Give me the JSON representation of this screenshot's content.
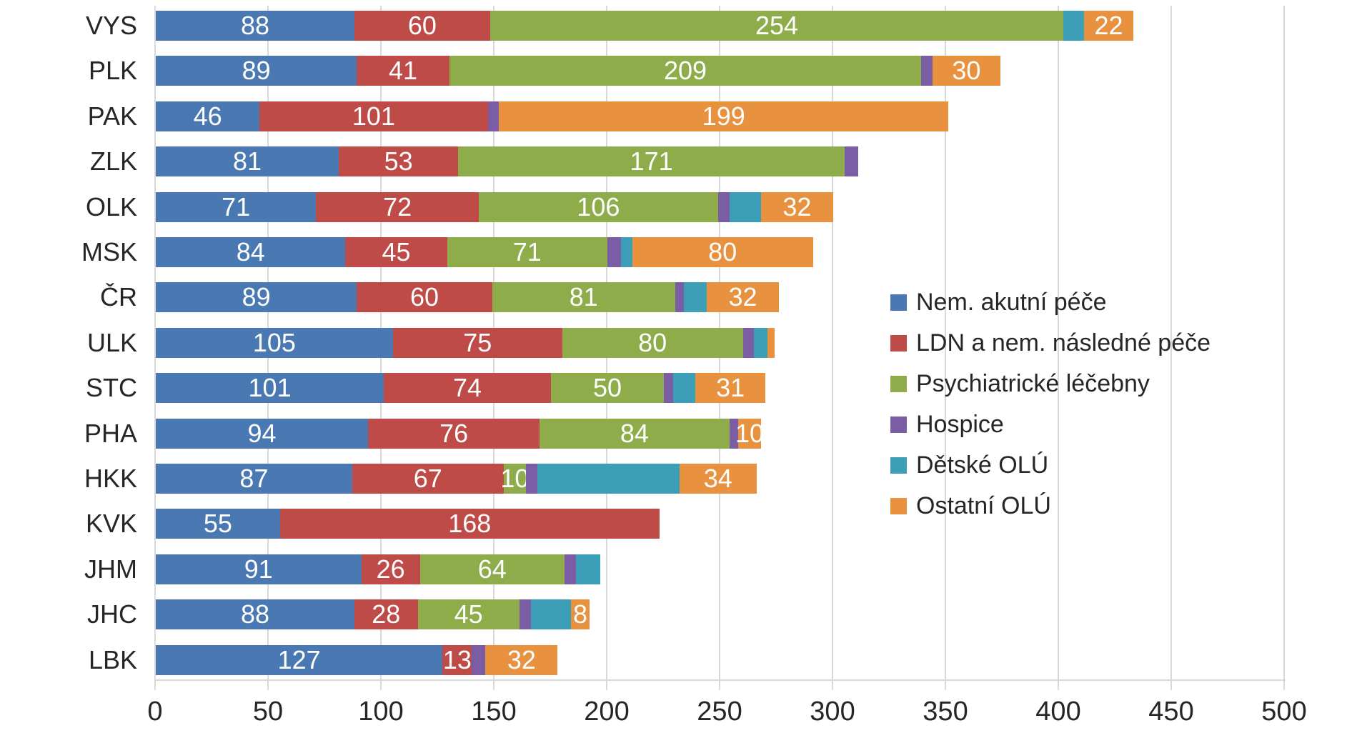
{
  "chart_data": {
    "type": "bar",
    "orientation": "horizontal",
    "stacked": true,
    "title": "",
    "xlabel": "",
    "ylabel": "",
    "xlim": [
      0,
      500
    ],
    "xticks": [
      0,
      50,
      100,
      150,
      200,
      250,
      300,
      350,
      400,
      450,
      500
    ],
    "grid": true,
    "legend_position": "right",
    "categories": [
      "VYS",
      "PLK",
      "PAK",
      "ZLK",
      "OLK",
      "MSK",
      "ČR",
      "ULK",
      "STC",
      "PHA",
      "HKK",
      "KVK",
      "JHM",
      "JHC",
      "LBK"
    ],
    "series": [
      {
        "name": "Nem. akutní péče",
        "color": "#4978B2",
        "values": [
          88,
          89,
          46,
          81,
          71,
          84,
          89,
          105,
          101,
          94,
          87,
          55,
          91,
          88,
          127
        ]
      },
      {
        "name": "LDN a nem. následné péče",
        "color": "#BE4B48",
        "values": [
          60,
          41,
          101,
          53,
          72,
          45,
          60,
          75,
          74,
          76,
          67,
          168,
          26,
          28,
          13
        ]
      },
      {
        "name": "Psychiatrické léčebny",
        "color": "#8EAD4A",
        "values": [
          254,
          209,
          0,
          171,
          106,
          71,
          81,
          80,
          50,
          84,
          10,
          0,
          64,
          45,
          0
        ]
      },
      {
        "name": "Hospice",
        "color": "#7A5DA4",
        "values": [
          0,
          5,
          5,
          6,
          5,
          6,
          4,
          5,
          4,
          4,
          5,
          0,
          5,
          5,
          6
        ]
      },
      {
        "name": "Dětské OLÚ",
        "color": "#3C9FB7",
        "values": [
          9,
          0,
          0,
          0,
          14,
          5,
          10,
          6,
          10,
          0,
          63,
          0,
          11,
          18,
          0
        ]
      },
      {
        "name": "Ostatní OLÚ",
        "color": "#E8913E",
        "values": [
          22,
          30,
          199,
          0,
          32,
          80,
          32,
          3,
          31,
          10,
          34,
          0,
          0,
          8,
          32
        ]
      }
    ],
    "data_labels": {
      "labeled_series": [
        "Nem. akutní péče",
        "LDN a nem. následné péče",
        "Psychiatrické léčebny",
        "Ostatní OLÚ"
      ],
      "min_value_to_label": 8,
      "label_color": "#FFFFFF"
    }
  },
  "axis": {
    "tick_labels": [
      "0",
      "50",
      "100",
      "150",
      "200",
      "250",
      "300",
      "350",
      "400",
      "450",
      "500"
    ]
  },
  "legend": {
    "items": [
      {
        "label": "Nem. akutní péče",
        "color": "#4978B2"
      },
      {
        "label": "LDN a nem. následné péče",
        "color": "#BE4B48"
      },
      {
        "label": "Psychiatrické léčebny",
        "color": "#8EAD4A"
      },
      {
        "label": "Hospice",
        "color": "#7A5DA4"
      },
      {
        "label": "Dětské OLÚ",
        "color": "#3C9FB7"
      },
      {
        "label": "Ostatní OLÚ",
        "color": "#E8913E"
      }
    ]
  },
  "colors": {
    "background": "#FFFFFF",
    "gridline": "#D9D9D9",
    "axis_text": "#262626",
    "value_label_text": "#FFFFFF"
  }
}
